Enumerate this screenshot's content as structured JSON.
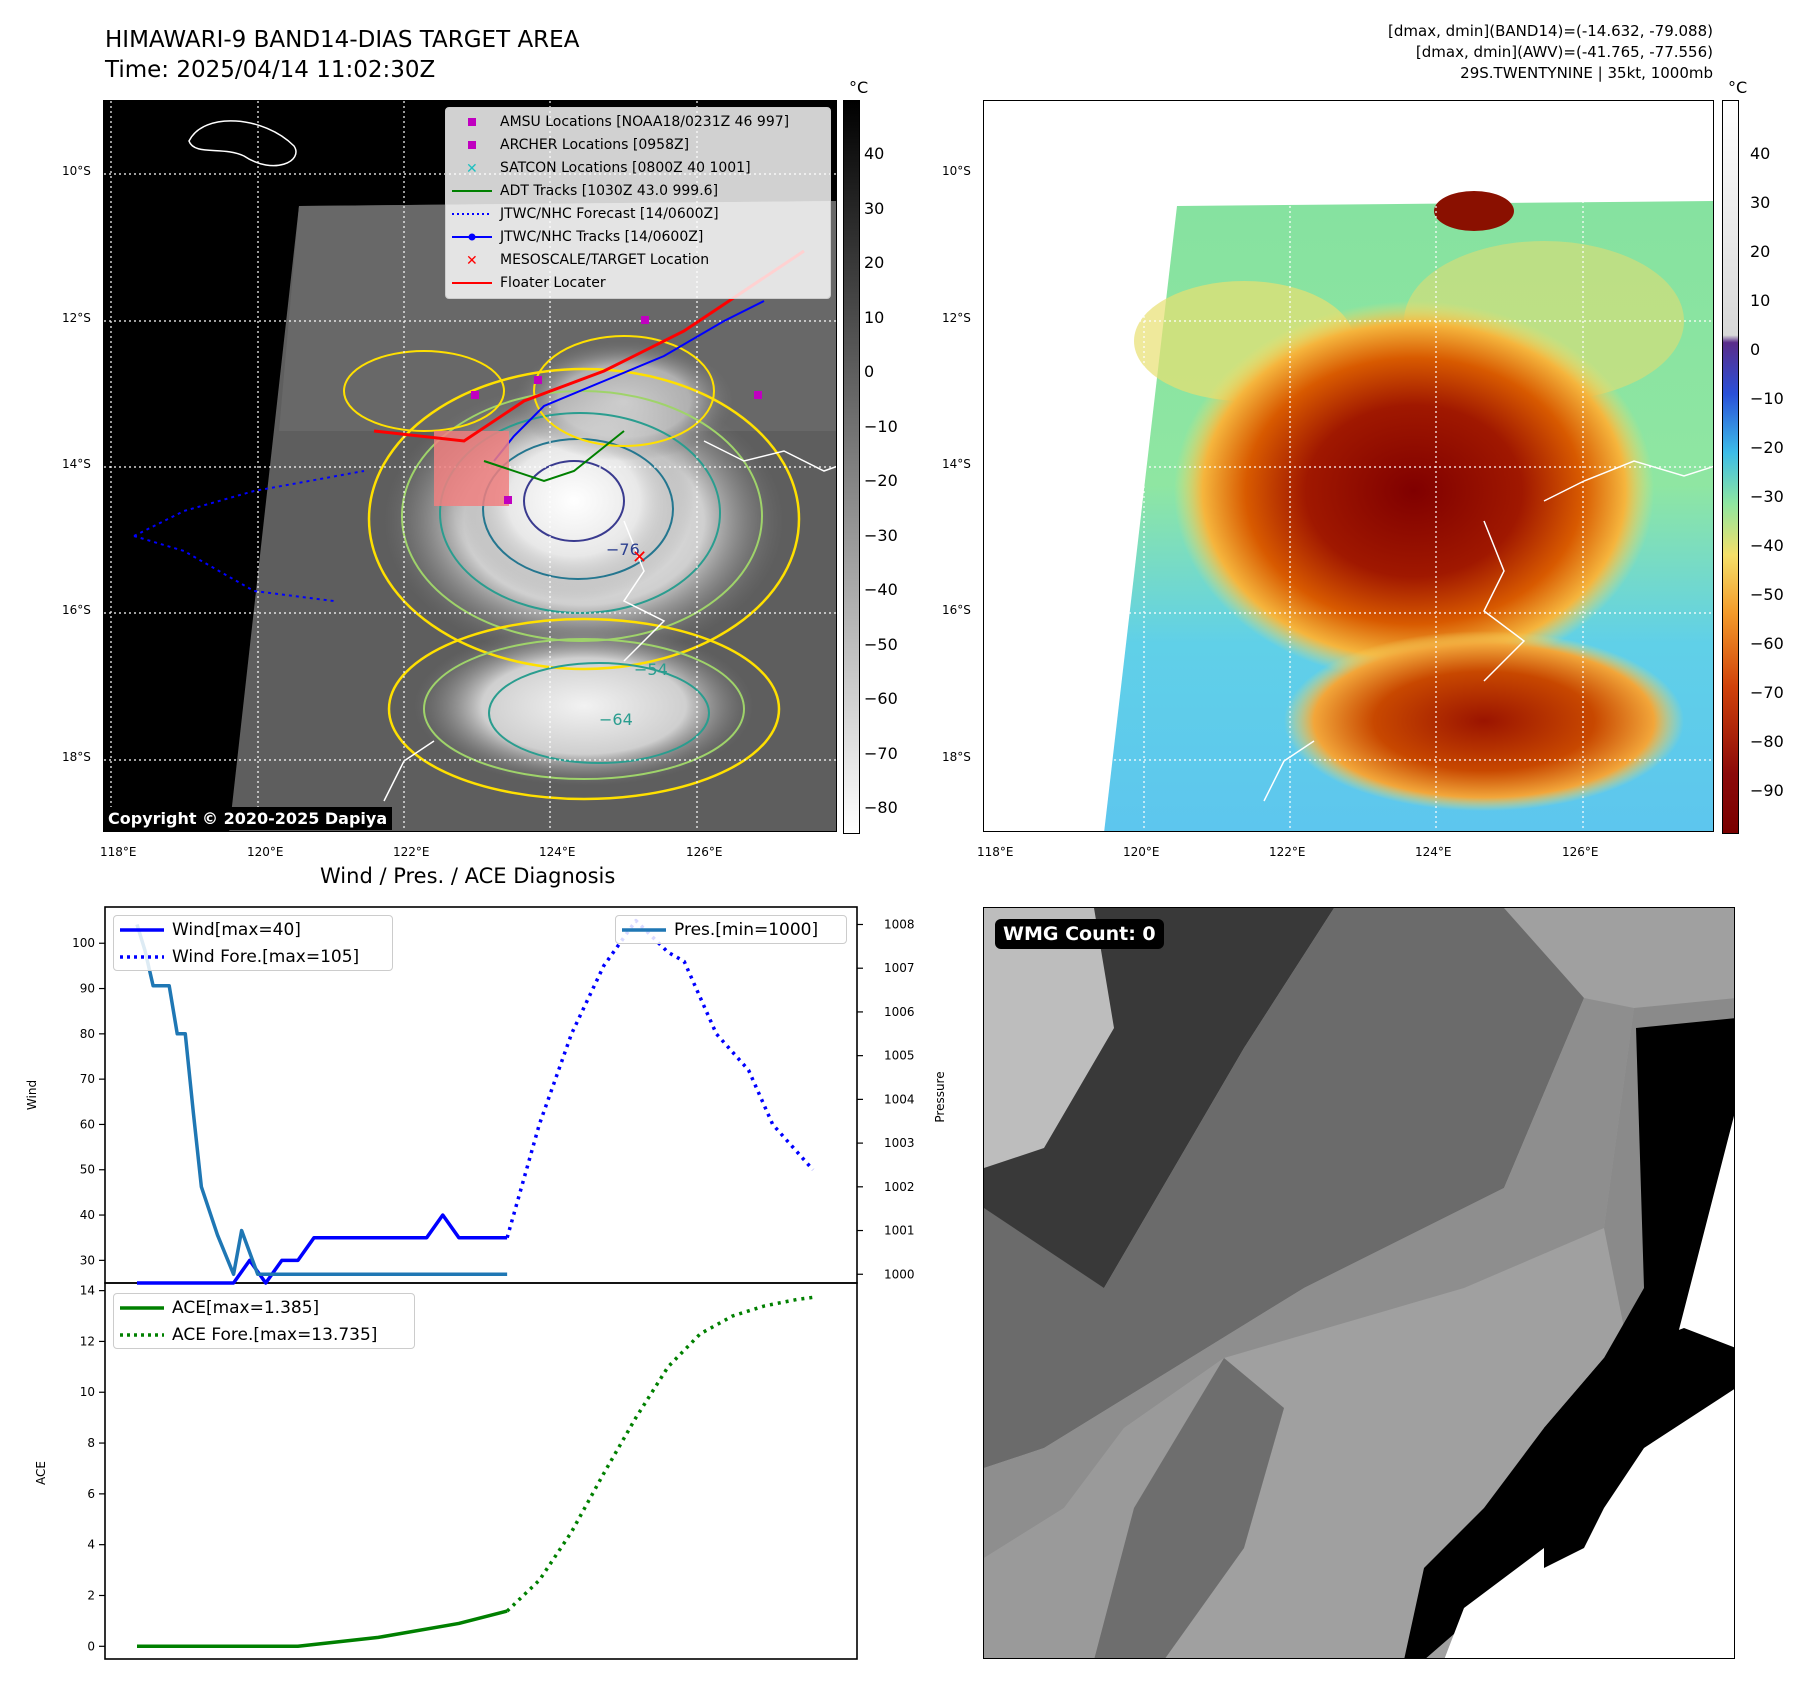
{
  "header": {
    "title_line1": "HIMAWARI-9 BAND14-DIAS TARGET AREA",
    "title_line2": "Time: 2025/04/14 11:02:30Z",
    "info_line1": "[dmax, dmin](BAND14)=(-14.632, -79.088)",
    "info_line2": "[dmax, dmin](AWV)=(-41.765, -77.556)",
    "info_line3": "29S.TWENTYNINE | 35kt, 1000mb"
  },
  "map_axes": {
    "lat_labels": [
      "10°S",
      "12°S",
      "14°S",
      "16°S",
      "18°S"
    ],
    "lon_labels": [
      "118°E",
      "120°E",
      "122°E",
      "124°E",
      "126°E"
    ]
  },
  "left_map": {
    "colorbar_unit": "°C",
    "colorbar_ticks": [
      "40",
      "30",
      "20",
      "10",
      "0",
      "−10",
      "−20",
      "−30",
      "−40",
      "−50",
      "−60",
      "−70",
      "−80"
    ],
    "contour_labels": [
      "−76",
      "−54",
      "−64"
    ],
    "copyright": "Copyright © 2020-2025 Dapiya",
    "legend": [
      {
        "label": "AMSU Locations [NOAA18/0231Z 46 997]",
        "color": "#c000c0",
        "icon": "square-marker"
      },
      {
        "label": "ARCHER Locations [0958Z]",
        "color": "#c000c0",
        "icon": "square-marker"
      },
      {
        "label": "SATCON Locations [0800Z 40 1001]",
        "color": "#20c0c0",
        "icon": "x-marker"
      },
      {
        "label": "ADT Tracks [1030Z 43.0 999.6]",
        "color": "#008000",
        "icon": "solid-line"
      },
      {
        "label": "JTWC/NHC Forecast [14/0600Z]",
        "color": "#0000ff",
        "icon": "dotted-line"
      },
      {
        "label": "JTWC/NHC Tracks [14/0600Z]",
        "color": "#0000ff",
        "icon": "line-dot"
      },
      {
        "label": "MESOSCALE/TARGET Location",
        "color": "#ff0000",
        "icon": "x-marker"
      },
      {
        "label": "Floater Locater",
        "color": "#ff0000",
        "icon": "solid-line"
      }
    ]
  },
  "right_map": {
    "colorbar_unit": "°C",
    "colorbar_ticks": [
      "40",
      "30",
      "20",
      "10",
      "0",
      "−10",
      "−20",
      "−30",
      "−40",
      "−50",
      "−60",
      "−70",
      "−80",
      "−90"
    ]
  },
  "diagnosis": {
    "title": "Wind / Pres. / ACE Diagnosis",
    "wind_axis_label": "Wind",
    "pressure_axis_label": "Pressure",
    "ace_axis_label": "ACE",
    "wind_ticks": [
      "100",
      "90",
      "80",
      "70",
      "60",
      "50",
      "40",
      "30"
    ],
    "pressure_ticks": [
      "1008",
      "1007",
      "1006",
      "1005",
      "1004",
      "1003",
      "1002",
      "1001",
      "1000"
    ],
    "ace_ticks": [
      "14",
      "12",
      "10",
      "8",
      "6",
      "4",
      "2",
      "0"
    ],
    "legend_wind": [
      "Wind[max=40]",
      "Wind Fore.[max=105]"
    ],
    "legend_pres": [
      "Pres.[min=1000]"
    ],
    "legend_ace": [
      "ACE[max=1.385]",
      "ACE Fore.[max=13.735]"
    ]
  },
  "wmg": {
    "label": "WMG Count: 0"
  },
  "chart_data": [
    {
      "type": "line",
      "title": "Wind / Pres. / ACE Diagnosis",
      "ylabel": "Wind",
      "y2label": "Pressure",
      "x_index": [
        0,
        1,
        2,
        3,
        4,
        5,
        6,
        7,
        8,
        9,
        10,
        11,
        12,
        13,
        14,
        15,
        16,
        17,
        18,
        19,
        20,
        21,
        22,
        23,
        24,
        25,
        26,
        27,
        28,
        29,
        30,
        31,
        32,
        33,
        34,
        35,
        36,
        37,
        38,
        39,
        40,
        41,
        42,
        43,
        44,
        45,
        46,
        47,
        48,
        49,
        50,
        51,
        52,
        53,
        54,
        55,
        56,
        57,
        58,
        59,
        60,
        61,
        62,
        63,
        64,
        65,
        66,
        67,
        68,
        69,
        70,
        71,
        72,
        73,
        74,
        75,
        76,
        77,
        78,
        79,
        80,
        81,
        82,
        83,
        84,
        85,
        86
      ],
      "ylim": [
        25,
        108
      ],
      "y2lim": [
        999.8,
        1008.4
      ],
      "series": [
        {
          "name": "Wind[max=40]",
          "color": "#0000ff",
          "style": "solid",
          "x": [
            0,
            12,
            14,
            16,
            18,
            20,
            22,
            24,
            26,
            36,
            38,
            40,
            42,
            44,
            46
          ],
          "values": [
            25,
            25,
            30,
            25,
            30,
            30,
            35,
            35,
            35,
            35,
            40,
            35,
            35,
            35,
            35
          ]
        },
        {
          "name": "Wind Fore.[max=105]",
          "color": "#0000ff",
          "style": "dotted",
          "x": [
            46,
            50,
            54,
            58,
            62,
            66,
            68,
            72,
            76,
            79,
            84
          ],
          "values": [
            35,
            60,
            80,
            95,
            105,
            98,
            96,
            80,
            72,
            60,
            50
          ]
        },
        {
          "name": "Pres.[min=1000]",
          "color": "#1f77b4",
          "style": "solid",
          "axis": "right",
          "x": [
            0,
            1,
            2,
            4,
            5,
            6,
            7,
            8,
            10,
            12,
            13,
            14,
            15,
            16,
            18,
            46
          ],
          "values": [
            1008,
            1007.4,
            1006.6,
            1006.6,
            1005.5,
            1005.5,
            1003.7,
            1002.0,
            1000.9,
            1000,
            1001.0,
            1000.5,
            1000,
            1000,
            1000,
            1000
          ]
        }
      ]
    },
    {
      "type": "line",
      "ylabel": "ACE",
      "ylim": [
        -0.5,
        14.3
      ],
      "series": [
        {
          "name": "ACE[max=1.385]",
          "color": "#008000",
          "style": "solid",
          "x": [
            0,
            10,
            20,
            30,
            40,
            46
          ],
          "values": [
            0,
            0,
            0,
            0.35,
            0.9,
            1.385
          ]
        },
        {
          "name": "ACE Fore.[max=13.735]",
          "color": "#008000",
          "style": "dotted",
          "x": [
            46,
            50,
            54,
            58,
            62,
            66,
            70,
            74,
            78,
            82,
            84
          ],
          "values": [
            1.385,
            2.6,
            4.5,
            6.8,
            9.0,
            11.0,
            12.3,
            13.0,
            13.4,
            13.65,
            13.735
          ]
        }
      ]
    }
  ]
}
